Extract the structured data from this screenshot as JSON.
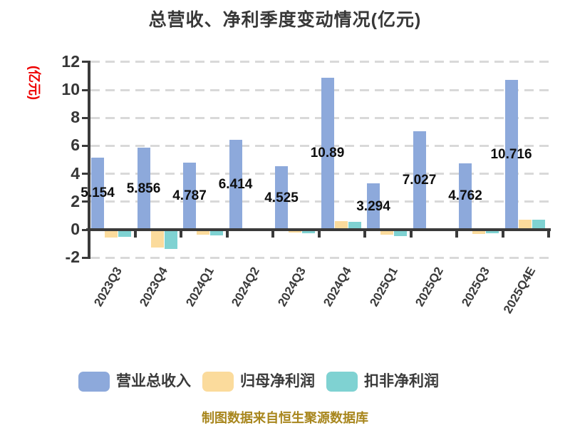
{
  "title": "总营收、净利季度变动情况(亿元)",
  "y_axis_unit": "(亿元)",
  "footer": "制图数据来自恒生聚源数据库",
  "chart_data": {
    "type": "bar",
    "title": "总营收、净利季度变动情况(亿元)",
    "xlabel": "",
    "ylabel": "(亿元)",
    "ylim": [
      -2,
      12
    ],
    "yticks": [
      12,
      10,
      8,
      6,
      4,
      2,
      0,
      -2
    ],
    "grid": "horizontal-dashed",
    "legend_position": "bottom",
    "categories": [
      "2023Q3",
      "2023Q4",
      "2024Q1",
      "2024Q2",
      "2024Q3",
      "2024Q4",
      "2025Q1",
      "2025Q2",
      "2025Q3",
      "2025Q4E"
    ],
    "series": [
      {
        "key": "total-revenue",
        "name": "营业总收入",
        "color": "#8da9db",
        "values": [
          5.154,
          5.856,
          4.787,
          6.414,
          4.525,
          10.89,
          3.294,
          7.027,
          4.762,
          10.716
        ],
        "value_labels": [
          "5.154",
          "5.856",
          "4.787",
          "6.414",
          "4.525",
          "10.89",
          "3.294",
          "7.027",
          "4.762",
          "10.716"
        ],
        "show_value_labels": true
      },
      {
        "key": "net-profit",
        "name": "归母净利润",
        "color": "#fbdb9c",
        "values": [
          -0.55,
          -1.25,
          -0.38,
          0.08,
          -0.22,
          0.6,
          -0.35,
          0.05,
          -0.3,
          0.72
        ],
        "show_value_labels": false
      },
      {
        "key": "deducted-net-profit",
        "name": "扣非净利润",
        "color": "#7fd2d2",
        "values": [
          -0.5,
          -1.4,
          -0.42,
          -0.12,
          -0.28,
          0.55,
          -0.45,
          0.04,
          -0.25,
          0.72
        ],
        "show_value_labels": false
      }
    ]
  },
  "legend": {
    "items": [
      {
        "label": "营业总收入",
        "color": "#8da9db"
      },
      {
        "label": "归母净利润",
        "color": "#fbdb9c"
      },
      {
        "label": "扣非净利润",
        "color": "#7fd2d2"
      }
    ]
  },
  "colors": {
    "background": "#ffffff",
    "axis": "#3a3a3a",
    "grid": "#d9d9d9",
    "title_text": "#383838",
    "tick_text": "#363636",
    "value_label_text": "#0e0e0e",
    "y_unit_text": "#ee0000",
    "footer_text": "#a8861d"
  }
}
